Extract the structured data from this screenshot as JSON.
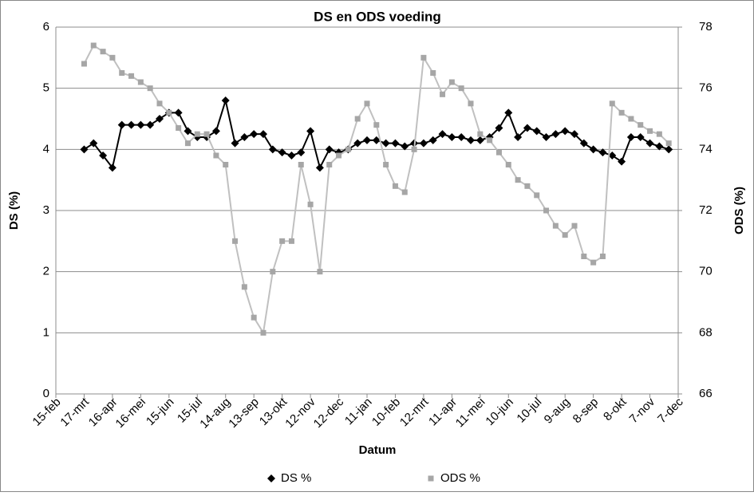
{
  "chart_data": {
    "type": "scatter",
    "title": "DS en ODS voeding",
    "x_label": "Datum",
    "y_label": "DS (%)",
    "y2_label": "ODS (%)",
    "xlim": [
      0,
      660
    ],
    "xticks": [
      {
        "value": 0,
        "label": "15-feb"
      },
      {
        "value": 30,
        "label": "17-mrt"
      },
      {
        "value": 60,
        "label": "16-apr"
      },
      {
        "value": 90,
        "label": "16-mei"
      },
      {
        "value": 120,
        "label": "15-jun"
      },
      {
        "value": 150,
        "label": "15-jul"
      },
      {
        "value": 180,
        "label": "14-aug"
      },
      {
        "value": 210,
        "label": "13-sep"
      },
      {
        "value": 240,
        "label": "13-okt"
      },
      {
        "value": 270,
        "label": "12-nov"
      },
      {
        "value": 300,
        "label": "12-dec"
      },
      {
        "value": 330,
        "label": "11-jan"
      },
      {
        "value": 360,
        "label": "10-feb"
      },
      {
        "value": 390,
        "label": "12-mrt"
      },
      {
        "value": 420,
        "label": "11-apr"
      },
      {
        "value": 450,
        "label": "11-mei"
      },
      {
        "value": 480,
        "label": "10-jun"
      },
      {
        "value": 510,
        "label": "10-jul"
      },
      {
        "value": 540,
        "label": "9-aug"
      },
      {
        "value": 570,
        "label": "8-sep"
      },
      {
        "value": 600,
        "label": "8-okt"
      },
      {
        "value": 630,
        "label": "7-nov"
      },
      {
        "value": 660,
        "label": "7-dec"
      }
    ],
    "ylim": [
      0,
      6
    ],
    "yticks": [
      0,
      1,
      2,
      3,
      4,
      5,
      6
    ],
    "y2lim": [
      66,
      78
    ],
    "y2ticks": [
      66,
      68,
      70,
      72,
      74,
      76,
      78
    ],
    "grid": true,
    "legend": "bottom",
    "x": [
      30,
      40,
      50,
      60,
      70,
      80,
      90,
      100,
      110,
      120,
      130,
      140,
      150,
      160,
      170,
      180,
      190,
      200,
      210,
      220,
      230,
      240,
      250,
      260,
      270,
      280,
      290,
      300,
      310,
      320,
      330,
      340,
      350,
      360,
      370,
      380,
      390,
      400,
      410,
      420,
      430,
      440,
      450,
      460,
      470,
      480,
      490,
      500,
      510,
      520,
      530,
      540,
      550,
      560,
      570,
      580,
      590,
      600,
      610,
      620,
      630,
      640,
      650
    ],
    "series": [
      {
        "name": "DS %",
        "color": "#000000",
        "line_color": "#000000",
        "marker": "diamond",
        "values": [
          4.0,
          4.1,
          3.9,
          3.7,
          4.4,
          4.4,
          4.4,
          4.4,
          4.5,
          4.6,
          4.6,
          4.3,
          4.2,
          4.2,
          4.3,
          4.8,
          4.1,
          4.2,
          4.25,
          4.25,
          4.0,
          3.95,
          3.9,
          3.95,
          4.3,
          3.7,
          4.0,
          3.95,
          4.0,
          4.1,
          4.15,
          4.15,
          4.1,
          4.1,
          4.05,
          4.1,
          4.1,
          4.15,
          4.25,
          4.2,
          4.2,
          4.15,
          4.15,
          4.2,
          4.35,
          4.6,
          4.2,
          4.35,
          4.3,
          4.2,
          4.25,
          4.3,
          4.25,
          4.1,
          4.0,
          3.95,
          3.9,
          3.8,
          4.2,
          4.2,
          4.1,
          4.05,
          4.0
        ]
      },
      {
        "name": "ODS %",
        "color": "#a6a6a6",
        "line_color": "#c0c0c0",
        "marker": "square",
        "axis": "y2",
        "values": [
          76.8,
          77.4,
          77.2,
          77.0,
          76.5,
          76.4,
          76.2,
          76.0,
          75.5,
          75.2,
          74.7,
          74.2,
          74.5,
          74.5,
          73.8,
          73.5,
          71.0,
          69.5,
          68.5,
          68.0,
          70.0,
          71.0,
          71.0,
          73.5,
          72.2,
          70.0,
          73.5,
          73.8,
          74.0,
          75.0,
          75.5,
          74.8,
          73.5,
          72.8,
          72.6,
          74.0,
          77.0,
          76.5,
          75.8,
          76.2,
          76.0,
          75.5,
          74.5,
          74.3,
          73.9,
          73.5,
          73.0,
          72.8,
          72.5,
          72.0,
          71.5,
          71.2,
          71.5,
          70.5,
          70.3,
          70.5,
          75.5,
          75.2,
          75.0,
          74.8,
          74.6,
          74.5,
          74.2
        ]
      }
    ]
  }
}
